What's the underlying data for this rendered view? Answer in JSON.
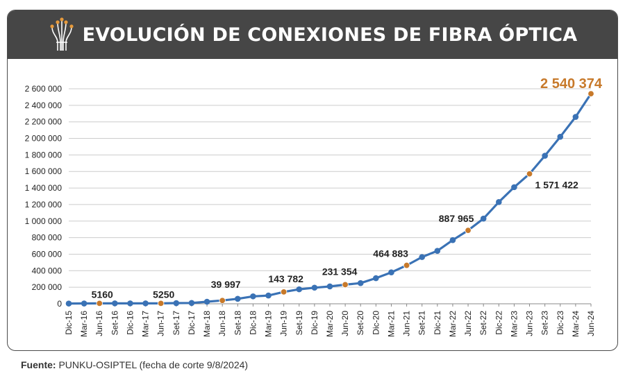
{
  "title": "EVOLUCIÓN DE CONEXIONES DE FIBRA ÓPTICA",
  "source_label": "Fuente:",
  "source_text": "PUNKU-OSIPTEL (fecha de corte 9/8/2024)",
  "colors": {
    "line": "#3a72b5",
    "point": "#3a72b5",
    "highlight": "#c7792a",
    "title_bg": "#464646",
    "grid": "#cccccc"
  },
  "icon": "fiber-optic-icon",
  "chart_data": {
    "type": "line",
    "title": "EVOLUCIÓN DE CONEXIONES DE FIBRA ÓPTICA",
    "xlabel": "",
    "ylabel": "",
    "ylim": [
      0,
      2600000
    ],
    "yticks": [
      0,
      200000,
      400000,
      600000,
      800000,
      1000000,
      1200000,
      1400000,
      1600000,
      1800000,
      2000000,
      2200000,
      2400000,
      2600000
    ],
    "ytick_labels": [
      "0",
      "200 000",
      "400 000",
      "600 000",
      "800 000",
      "1 000 000",
      "1 200 000",
      "1 400 000",
      "1 600 000",
      "1 800 000",
      "2 000 000",
      "2 200 000",
      "2 400 000",
      "2 600 000"
    ],
    "grid": true,
    "legend": "none",
    "categories": [
      "Dic-15",
      "Mar-16",
      "Jun-16",
      "Set-16",
      "Dic-16",
      "Mar-17",
      "Jun-17",
      "Set-17",
      "Dic-17",
      "Mar-18",
      "Jun-18",
      "Set-18",
      "Dic-18",
      "Mar-19",
      "Jun-19",
      "Set-19",
      "Dic-19",
      "Mar-20",
      "Jun-20",
      "Set-20",
      "Dic-20",
      "Mar-21",
      "Jun-21",
      "Set-21",
      "Dic-21",
      "Mar-22",
      "Jun-22",
      "Set-22",
      "Dic-22",
      "Mar-23",
      "Jun-23",
      "Set-23",
      "Dic-23",
      "Mar-24",
      "Jun-24"
    ],
    "values": [
      3000,
      4000,
      5160,
      5200,
      5200,
      5200,
      5250,
      8000,
      10000,
      25000,
      39997,
      60000,
      90000,
      100000,
      143782,
      175000,
      195000,
      210000,
      231354,
      250000,
      310000,
      380000,
      464883,
      565000,
      640000,
      770000,
      887965,
      1030000,
      1230000,
      1410000,
      1571422,
      1790000,
      2020000,
      2260000,
      2540374
    ],
    "highlighted_indices": [
      2,
      6,
      10,
      14,
      18,
      22,
      26,
      30,
      34
    ],
    "annotations": [
      {
        "index": 2,
        "label": "5160"
      },
      {
        "index": 6,
        "label": "5250"
      },
      {
        "index": 10,
        "label": "39 997"
      },
      {
        "index": 14,
        "label": "143 782"
      },
      {
        "index": 18,
        "label": "231 354"
      },
      {
        "index": 22,
        "label": "464 883"
      },
      {
        "index": 26,
        "label": "887 965"
      },
      {
        "index": 30,
        "label": "1 571 422"
      },
      {
        "index": 34,
        "label": "2 540 374"
      }
    ]
  }
}
